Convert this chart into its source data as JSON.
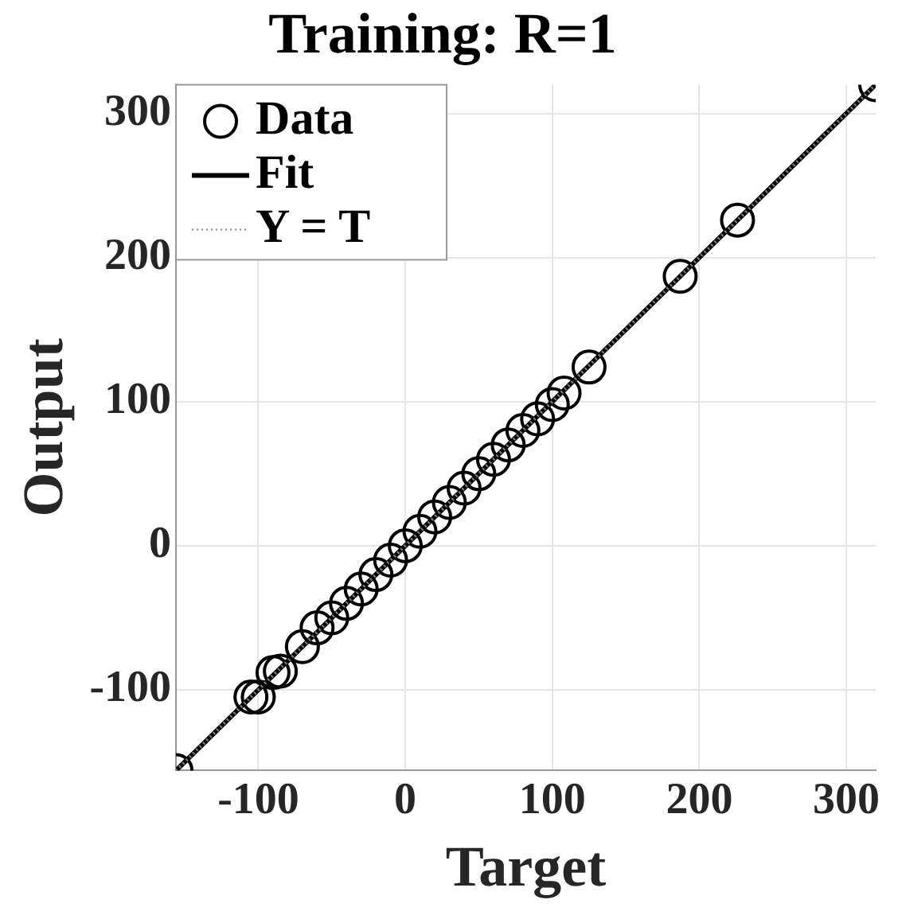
{
  "chart_data": {
    "type": "scatter",
    "title": "Training: R=1",
    "xlabel": "Target",
    "ylabel": "Output",
    "xlim": [
      -156,
      320
    ],
    "ylim": [
      -156,
      320
    ],
    "xticks": [
      -100,
      0,
      100,
      200,
      300
    ],
    "yticks": [
      -100,
      0,
      100,
      200,
      300
    ],
    "grid": true,
    "legend": "top left",
    "series": [
      {
        "name": "Data",
        "type": "scatter",
        "marker": "circle",
        "color": "#000000",
        "x": [
          -156,
          -105,
          -100,
          -90,
          -85,
          -70,
          -60,
          -50,
          -40,
          -30,
          -20,
          -10,
          0,
          10,
          20,
          30,
          40,
          50,
          60,
          70,
          80,
          90,
          100,
          108,
          125,
          187,
          226,
          320
        ],
        "values": [
          -156,
          -105,
          -105,
          -88,
          -87,
          -70,
          -57,
          -50,
          -40,
          -30,
          -20,
          -10,
          0,
          10,
          20,
          30,
          40,
          50,
          60,
          70,
          80,
          88,
          98,
          106,
          124,
          187,
          226,
          320
        ]
      },
      {
        "name": "Fit",
        "type": "line",
        "marker": "none",
        "line_style": "solid",
        "color": "#000000",
        "x": [
          -156,
          320
        ],
        "values": [
          -156,
          320
        ]
      },
      {
        "name": "Y = T",
        "type": "line",
        "marker": "none",
        "line_style": "dotted",
        "color": "#808080",
        "x": [
          -156,
          320
        ],
        "values": [
          -156,
          320
        ]
      }
    ]
  }
}
